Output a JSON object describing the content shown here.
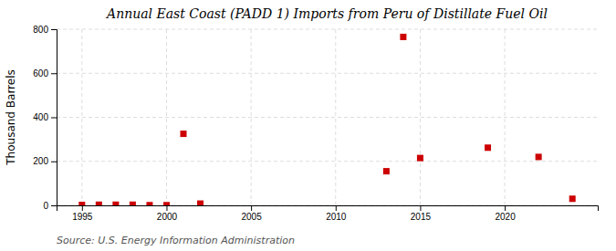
{
  "chart_data": {
    "type": "scatter",
    "title": "Annual East Coast (PADD 1) Imports from Peru of Distillate Fuel Oil",
    "ylabel": "Thousand Barrels",
    "source": "Source: U.S. Energy Information Administration",
    "x": [
      1995,
      1996,
      1997,
      1998,
      1999,
      2000,
      2001,
      2002,
      2013,
      2014,
      2015,
      2019,
      2022,
      2024
    ],
    "values": [
      2,
      3,
      3,
      3,
      1,
      1,
      325,
      8,
      155,
      765,
      215,
      262,
      220,
      30
    ],
    "color": "#cc0000",
    "marker": "square",
    "xlim": [
      1993.5,
      2025.5
    ],
    "xticks": [
      1995,
      2000,
      2005,
      2010,
      2015,
      2020
    ],
    "ylim": [
      0,
      800
    ],
    "yticks": [
      0,
      200,
      400,
      600,
      800
    ],
    "grid": true
  }
}
